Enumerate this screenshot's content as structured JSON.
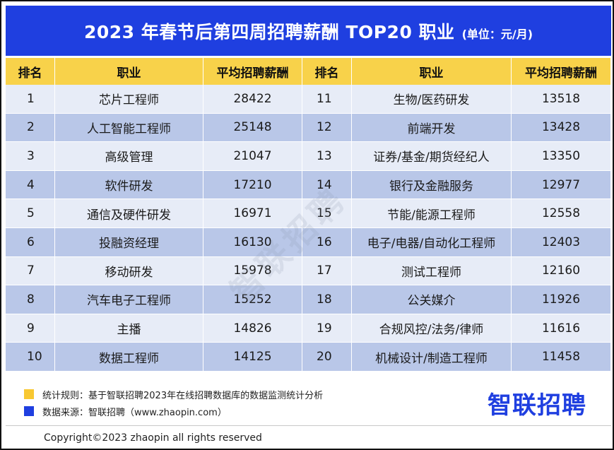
{
  "header": {
    "title": "2023 年春节后第四周招聘薪酬 TOP20 职业",
    "unit": "(单位：元/月)"
  },
  "table": {
    "columns": [
      "排名",
      "职业",
      "平均招聘薪酬",
      "排名",
      "职业",
      "平均招聘薪酬"
    ],
    "rows": [
      [
        "1",
        "芯片工程师",
        "28422",
        "11",
        "生物/医药研发",
        "13518"
      ],
      [
        "2",
        "人工智能工程师",
        "25148",
        "12",
        "前端开发",
        "13428"
      ],
      [
        "3",
        "高级管理",
        "21047",
        "13",
        "证券/基金/期货经纪人",
        "13350"
      ],
      [
        "4",
        "软件研发",
        "17210",
        "14",
        "银行及金融服务",
        "12977"
      ],
      [
        "5",
        "通信及硬件研发",
        "16971",
        "15",
        "节能/能源工程师",
        "12558"
      ],
      [
        "6",
        "投融资经理",
        "16130",
        "16",
        "电子/电器/自动化工程师",
        "12403"
      ],
      [
        "7",
        "移动研发",
        "15978",
        "17",
        "测试工程师",
        "12160"
      ],
      [
        "8",
        "汽车电子工程师",
        "15252",
        "18",
        "公关媒介",
        "11926"
      ],
      [
        "9",
        "主播",
        "14826",
        "19",
        "合规风控/法务/律师",
        "11616"
      ],
      [
        "10",
        "数据工程师",
        "14125",
        "20",
        "机械设计/制造工程师",
        "11458"
      ]
    ]
  },
  "watermark": "智联招聘",
  "notes": {
    "rule": "统计规则：基于智联招聘2023年在线招聘数据库的数据监测统计分析",
    "source": "数据来源：智联招聘（www.zhaopin.com）"
  },
  "brand": {
    "logo_text": "智联招聘"
  },
  "footer": {
    "copyright": "Copyright©2023 zhaopin all rights reserved"
  },
  "colors": {
    "title_bg": "#1f3fe0",
    "header_bg": "#f8d24a",
    "row_light": "#e7ecf7",
    "row_dark": "#b9c7e8",
    "note_yellow": "#f8c832",
    "note_blue": "#1f3fe0"
  }
}
